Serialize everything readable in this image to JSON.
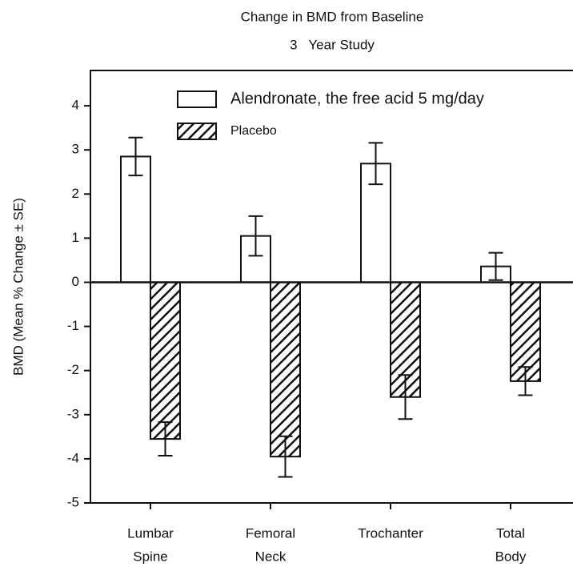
{
  "chart_data": {
    "type": "bar",
    "title": "Change in BMD from Baseline",
    "subtitle": "3   Year Study",
    "y_label": "BMD (Mean % Change ± SE)",
    "categories": [
      [
        "Lumbar",
        "Spine"
      ],
      [
        "Femoral",
        "Neck"
      ],
      [
        "Trochanter"
      ],
      [
        "Total",
        "Body"
      ]
    ],
    "series": [
      {
        "name": "Alendronate, the free acid 5 mg/day",
        "color": "#ffffff",
        "pattern": "solid",
        "values": [
          2.85,
          1.05,
          2.69,
          0.36
        ],
        "errors": [
          0.43,
          0.45,
          0.47,
          0.31
        ]
      },
      {
        "name": "Placebo",
        "color": "#ffffff",
        "pattern": "hatch",
        "values": [
          -3.55,
          -3.95,
          -2.6,
          -2.24
        ],
        "errors": [
          0.38,
          0.46,
          0.5,
          0.32
        ]
      }
    ],
    "ylim": [
      -5,
      4.8
    ],
    "yticks": [
      -5,
      -4,
      -3,
      -2,
      -1,
      0,
      1,
      2,
      3,
      4
    ],
    "legend": "upper right"
  }
}
